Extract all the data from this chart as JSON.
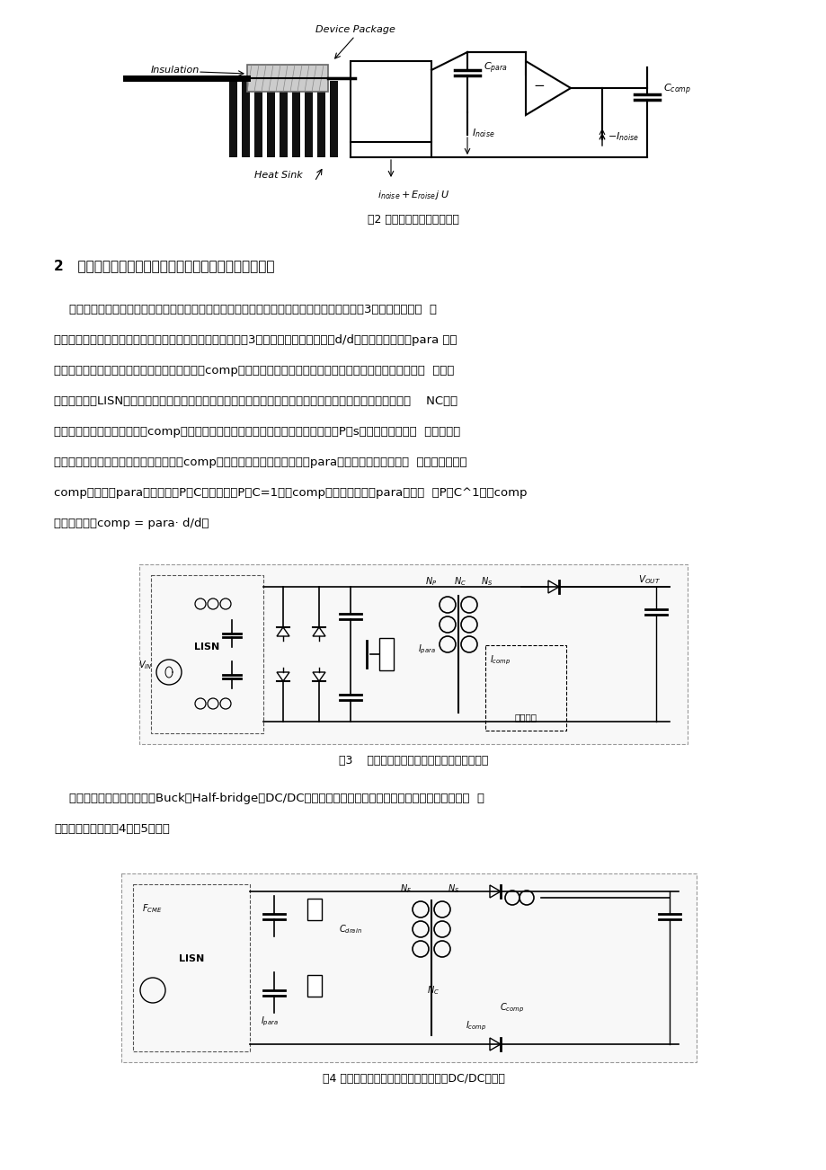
{
  "bg_color": "#ffffff",
  "page_width": 9.2,
  "page_height": 13.02,
  "fig2_caption": "图2 提出的共模噪声消除方法",
  "section2_title": "2   基于补偿原理的共模干扰抑制技术在开关电源中的应用",
  "para1_lines": [
    "    本文以单端反激电路为例，介绍基于补偿原理的共模干扰抑制技术在功率变换器中的应用。图3给出了典型单端  反",
    "激变换器的拓扑结构，并加入了新的共模噪声抑制电路。如图3所示，从开关器件过来的d/d所导致的寄生电流para 注入",
    "接地层，附加抑制电路产生的反相噪声补偿电流comp也同时注入接地层。理想的状况就是这两股电流相加为零，  从而大",
    "大减少了流向LISN电阻的共模电流。利用现有电路中的电源变压器磁芯，在原绕组结构上再增加一个附加绕组    NC。由",
    "于该绕组只需流过由补偿电容comp产生的反向噪声电流，所以它的线径相对原副方的P及s绕组显得很小（由  实际装置的",
    "设计考虑决定）。附加电路中的补偿电容comp主要是用来产生和由寄生电容para引起的寄生噪声电流反  相的补偿电流。",
    "comp的大小由para和绕组匝比P：C决定。如果P：C=1，则comp的电容值取得和para相当；  若P：C^1，则comp",
    "的取值要满足comp = para· d/d。"
  ],
  "fig3_caption": "图3    带无源共模抑制电路的隔离型反激变换器",
  "para2_lines": [
    "    此外，还可以通过改造诸如Buck，Half-bridge等DC/DC变换器中的电感或变压器，从而形成无源补偿电路，  实",
    "现噪声的抑制，如图4，图5所示。"
  ],
  "fig4_caption": "图4 带有无源共模抑制电路的半桥隔离式DC/DC变换器",
  "text_color": "#000000",
  "text_fontsize": 9.5,
  "title_fontsize": 11,
  "caption_fontsize": 9
}
